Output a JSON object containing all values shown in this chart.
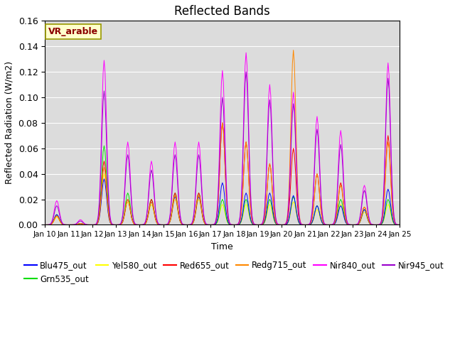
{
  "title": "Reflected Bands",
  "xlabel": "Time",
  "ylabel": "Reflected Radiation (W/m2)",
  "annotation": "VR_arable",
  "ylim": [
    0,
    0.16
  ],
  "x_tick_labels": [
    "Jan 10",
    "Jan 11",
    "Jan 12",
    "Jan 13",
    "Jan 14",
    "Jan 15",
    "Jan 16",
    "Jan 17",
    "Jan 18",
    "Jan 19",
    "Jan 20",
    "Jan 21",
    "Jan 22",
    "Jan 23",
    "Jan 24",
    "Jan 25"
  ],
  "series": [
    {
      "name": "Blu475_out",
      "color": "#0000ff"
    },
    {
      "name": "Grn535_out",
      "color": "#00dd00"
    },
    {
      "name": "Yel580_out",
      "color": "#ffff00"
    },
    {
      "name": "Red655_out",
      "color": "#ff0000"
    },
    {
      "name": "Redg715_out",
      "color": "#ff8800"
    },
    {
      "name": "Nir840_out",
      "color": "#ff00ff"
    },
    {
      "name": "Nir945_out",
      "color": "#9900cc"
    }
  ],
  "bg_color": "#dcdcdc",
  "title_fontsize": 12,
  "axis_fontsize": 9,
  "legend_fontsize": 8.5
}
